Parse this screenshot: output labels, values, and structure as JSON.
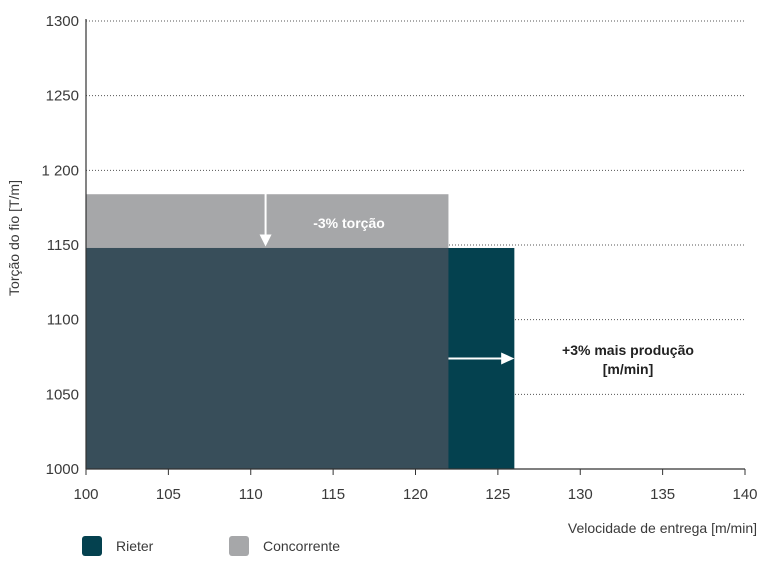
{
  "chart_data": {
    "type": "area",
    "xlabel": "Velocidade de entrega [m/min]",
    "ylabel": "Torção do fio [T/m]",
    "xlim": [
      100,
      140
    ],
    "ylim": [
      1000,
      1300
    ],
    "x_ticks": [
      100,
      105,
      110,
      115,
      120,
      125,
      130,
      135,
      140
    ],
    "y_ticks": [
      {
        "value": 1000,
        "label": "1000"
      },
      {
        "value": 1050,
        "label": "1050"
      },
      {
        "value": 1100,
        "label": "1100"
      },
      {
        "value": 1150,
        "label": "1150"
      },
      {
        "value": 1200,
        "label": "1 200"
      },
      {
        "value": 1250,
        "label": "1250"
      },
      {
        "value": 1300,
        "label": "1300"
      }
    ],
    "grid": "horizontal dotted",
    "series": [
      {
        "name": "Rieter",
        "color": "#04414f",
        "x_range": [
          100,
          126
        ],
        "y": 1148
      },
      {
        "name": "Concorrente",
        "color": "#a6a7a9",
        "x_range": [
          100,
          122
        ],
        "y": 1184
      }
    ],
    "overlap_color": "#384e5a",
    "annotations": {
      "torsion": "-3% torção",
      "production_line1": "+3% mais produção",
      "production_line2": "[m/min]"
    },
    "legend_placement": "bottom-left"
  }
}
